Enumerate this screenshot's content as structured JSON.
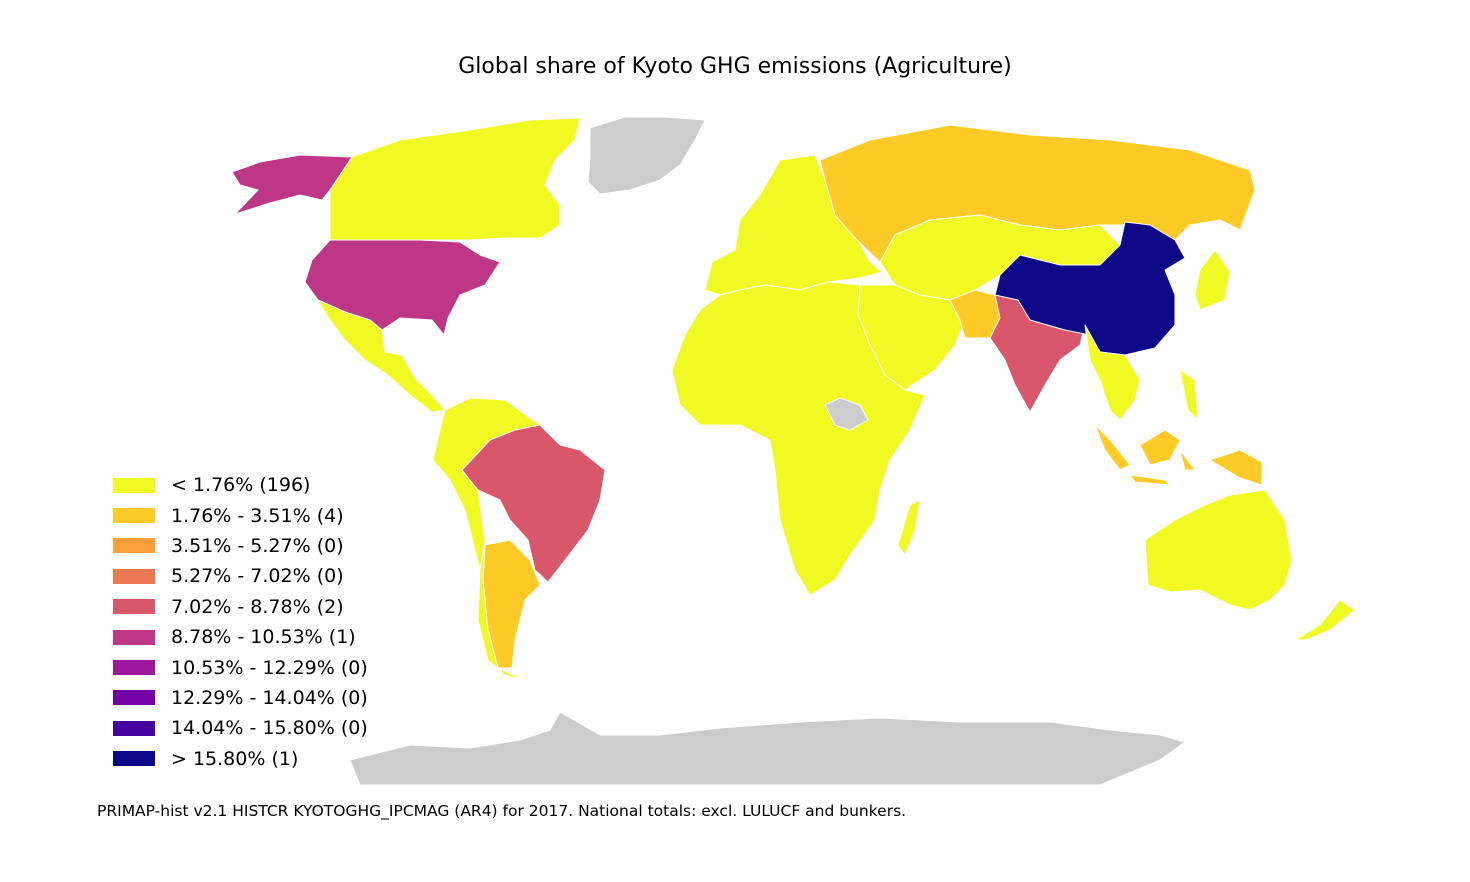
{
  "title": "Global share of Kyoto GHG emissions (Agriculture)",
  "colors": {
    "no_data": "#cccccc",
    "land_border": "#ffffff"
  },
  "legend": [
    {
      "label": "< 1.76% (196)",
      "color": "#f0f921"
    },
    {
      "label": "1.76% - 3.51% (4)",
      "color": "#fdca26"
    },
    {
      "label": "3.51% - 5.27% (0)",
      "color": "#fb9f3a"
    },
    {
      "label": "5.27% - 7.02% (0)",
      "color": "#ed7953"
    },
    {
      "label": "7.02% - 8.78% (2)",
      "color": "#d8576b"
    },
    {
      "label": "8.78% - 10.53% (1)",
      "color": "#bd3786"
    },
    {
      "label": "10.53% - 12.29% (0)",
      "color": "#9c179e"
    },
    {
      "label": "12.29% - 14.04% (0)",
      "color": "#7201a8"
    },
    {
      "label": "14.04% - 15.80% (0)",
      "color": "#46039f"
    },
    {
      "label": "> 15.80% (1)",
      "color": "#0d0887"
    }
  ],
  "regions": [
    {
      "id": "canada",
      "class": 0
    },
    {
      "id": "alaska",
      "class": 5
    },
    {
      "id": "usa",
      "class": 5
    },
    {
      "id": "mexico-central-america",
      "class": 0
    },
    {
      "id": "greenland",
      "class": -1
    },
    {
      "id": "south-america-north",
      "class": 0
    },
    {
      "id": "brazil",
      "class": 4
    },
    {
      "id": "argentina",
      "class": 1
    },
    {
      "id": "chile",
      "class": 0
    },
    {
      "id": "europe",
      "class": 0
    },
    {
      "id": "russia",
      "class": 1
    },
    {
      "id": "africa",
      "class": 0
    },
    {
      "id": "south-sudan",
      "class": -1
    },
    {
      "id": "madagascar",
      "class": 0
    },
    {
      "id": "middle-east",
      "class": 0
    },
    {
      "id": "central-asia",
      "class": 0
    },
    {
      "id": "pakistan",
      "class": 1
    },
    {
      "id": "india",
      "class": 4
    },
    {
      "id": "china",
      "class": 9
    },
    {
      "id": "southeast-asia",
      "class": 0
    },
    {
      "id": "indonesia",
      "class": 1
    },
    {
      "id": "japan",
      "class": 0
    },
    {
      "id": "australia",
      "class": 0
    },
    {
      "id": "new-zealand",
      "class": 0
    },
    {
      "id": "antarctica",
      "class": -1
    }
  ],
  "source_note": "PRIMAP-hist v2.1 HISTCR KYOTOGHG_IPCMAG (AR4) for 2017. National totals: excl. LULUCF and bunkers."
}
